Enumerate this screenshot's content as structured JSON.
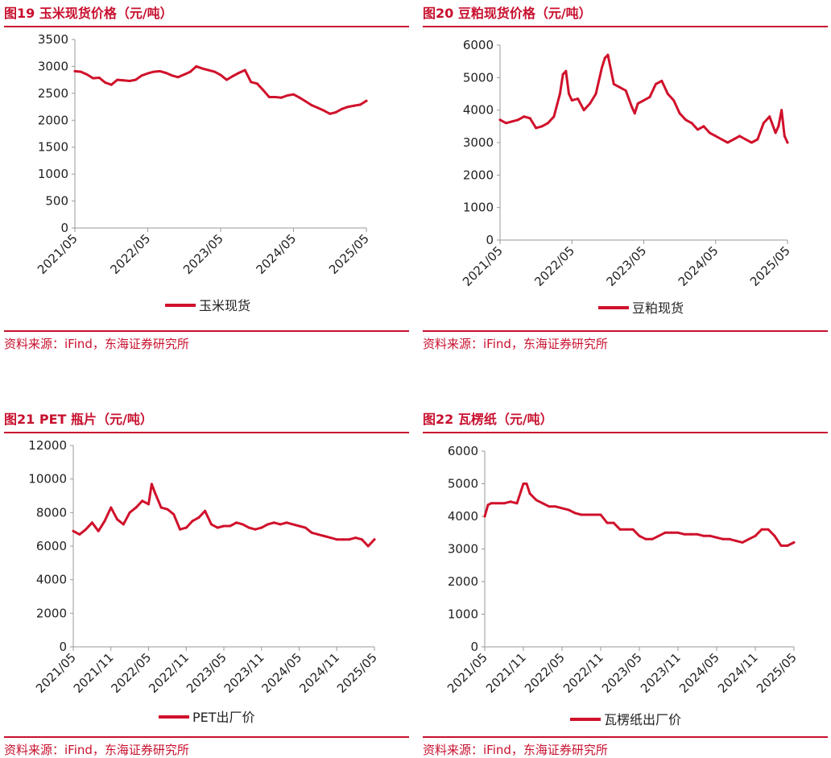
{
  "colors": {
    "accent": "#c8102e",
    "series": "#d0112b",
    "axis": "#9a9a9a",
    "text": "#222222"
  },
  "chart_data": [
    {
      "type": "line",
      "title": "图19  玉米现货价格（元/吨）",
      "ylim": [
        0,
        3500
      ],
      "yticks": [
        0,
        500,
        1000,
        1500,
        2000,
        2500,
        3000,
        3500
      ],
      "x_range": [
        0,
        48
      ],
      "x_ticks": [
        {
          "pos": 0,
          "label": "2021/05"
        },
        {
          "pos": 12,
          "label": "2022/05"
        },
        {
          "pos": 24,
          "label": "2023/05"
        },
        {
          "pos": 36,
          "label": "2024/05"
        },
        {
          "pos": 48,
          "label": "2025/05"
        }
      ],
      "series": [
        {
          "name": "玉米现货",
          "x": [
            0,
            1,
            2,
            3,
            4,
            5,
            6,
            7,
            8,
            9,
            10,
            11,
            12,
            13,
            14,
            15,
            16,
            17,
            18,
            19,
            20,
            21,
            22,
            23,
            24,
            25,
            26,
            27,
            28,
            29,
            30,
            31,
            32,
            33,
            34,
            35,
            36,
            37,
            38,
            39,
            40,
            41,
            42,
            43,
            44,
            45,
            46,
            47,
            48
          ],
          "values": [
            2910,
            2900,
            2850,
            2780,
            2790,
            2700,
            2660,
            2750,
            2740,
            2730,
            2750,
            2830,
            2870,
            2900,
            2910,
            2880,
            2830,
            2800,
            2850,
            2900,
            3000,
            2960,
            2930,
            2900,
            2840,
            2750,
            2820,
            2880,
            2930,
            2710,
            2680,
            2560,
            2430,
            2430,
            2420,
            2460,
            2480,
            2420,
            2350,
            2280,
            2230,
            2180,
            2120,
            2150,
            2210,
            2250,
            2270,
            2290,
            2360
          ]
        }
      ],
      "legend": "玉米现货",
      "source": "资料来源：iFind，东海证券研究所"
    },
    {
      "type": "line",
      "title": "图20  豆粕现货价格（元/吨）",
      "ylim": [
        0,
        6000
      ],
      "yticks": [
        0,
        1000,
        2000,
        3000,
        4000,
        5000,
        6000
      ],
      "x_range": [
        0,
        48
      ],
      "x_ticks": [
        {
          "pos": 0,
          "label": "2021/05"
        },
        {
          "pos": 12,
          "label": "2022/05"
        },
        {
          "pos": 24,
          "label": "2023/05"
        },
        {
          "pos": 36,
          "label": "2024/05"
        },
        {
          "pos": 48,
          "label": "2025/05"
        }
      ],
      "series": [
        {
          "name": "豆粕现货",
          "x": [
            0,
            1,
            2,
            3,
            4,
            5,
            6,
            7,
            8,
            9,
            10,
            10.5,
            11,
            11.5,
            12,
            13,
            14,
            15,
            16,
            17,
            17.5,
            18,
            19,
            20,
            21,
            22,
            22.5,
            23,
            24,
            25,
            26,
            27,
            28,
            29,
            30,
            31,
            32,
            33,
            34,
            35,
            36,
            37,
            38,
            39,
            40,
            41,
            42,
            43,
            44,
            45,
            46,
            46.5,
            47,
            47.5,
            48
          ],
          "values": [
            3700,
            3600,
            3650,
            3700,
            3800,
            3750,
            3450,
            3500,
            3600,
            3800,
            4500,
            5100,
            5200,
            4500,
            4300,
            4350,
            4000,
            4200,
            4500,
            5300,
            5600,
            5700,
            4800,
            4700,
            4600,
            4100,
            3900,
            4200,
            4300,
            4400,
            4800,
            4900,
            4500,
            4300,
            3900,
            3700,
            3600,
            3400,
            3500,
            3300,
            3200,
            3100,
            3000,
            3100,
            3200,
            3100,
            3000,
            3100,
            3600,
            3800,
            3300,
            3500,
            4000,
            3200,
            3000
          ]
        }
      ],
      "legend": "豆粕现货",
      "source": "资料来源：iFind，东海证券研究所"
    },
    {
      "type": "line",
      "title": "图21  PET 瓶片（元/吨）",
      "ylim": [
        0,
        12000
      ],
      "yticks": [
        0,
        2000,
        4000,
        6000,
        8000,
        10000,
        12000
      ],
      "x_range": [
        0,
        48
      ],
      "x_ticks": [
        {
          "pos": 0,
          "label": "2021/05"
        },
        {
          "pos": 6,
          "label": "2021/11"
        },
        {
          "pos": 12,
          "label": "2022/05"
        },
        {
          "pos": 18,
          "label": "2022/11"
        },
        {
          "pos": 24,
          "label": "2023/05"
        },
        {
          "pos": 30,
          "label": "2023/11"
        },
        {
          "pos": 36,
          "label": "2024/05"
        },
        {
          "pos": 42,
          "label": "2024/11"
        },
        {
          "pos": 48,
          "label": "2025/05"
        }
      ],
      "series": [
        {
          "name": "PET出厂价",
          "x": [
            0,
            1,
            2,
            3,
            4,
            5,
            6,
            7,
            8,
            9,
            10,
            11,
            12,
            12.5,
            13,
            14,
            15,
            16,
            17,
            18,
            19,
            20,
            21,
            22,
            23,
            24,
            25,
            26,
            27,
            28,
            29,
            30,
            31,
            32,
            33,
            34,
            35,
            36,
            37,
            38,
            39,
            40,
            41,
            42,
            43,
            44,
            45,
            46,
            47,
            48
          ],
          "values": [
            6900,
            6700,
            7000,
            7400,
            6900,
            7500,
            8300,
            7600,
            7300,
            8000,
            8300,
            8700,
            8500,
            9700,
            9200,
            8300,
            8200,
            7900,
            7000,
            7100,
            7500,
            7700,
            8100,
            7300,
            7100,
            7200,
            7200,
            7400,
            7300,
            7100,
            7000,
            7100,
            7300,
            7400,
            7300,
            7400,
            7300,
            7200,
            7100,
            6800,
            6700,
            6600,
            6500,
            6400,
            6400,
            6400,
            6500,
            6400,
            6000,
            6400
          ]
        }
      ],
      "legend": "PET出厂价",
      "source": "资料来源：iFind，东海证券研究所"
    },
    {
      "type": "line",
      "title": "图22  瓦楞纸（元/吨）",
      "ylim": [
        0,
        6000
      ],
      "yticks": [
        0,
        1000,
        2000,
        3000,
        4000,
        5000,
        6000
      ],
      "x_range": [
        0,
        48
      ],
      "x_ticks": [
        {
          "pos": 0,
          "label": "2021/05"
        },
        {
          "pos": 6,
          "label": "2021/11"
        },
        {
          "pos": 12,
          "label": "2022/05"
        },
        {
          "pos": 18,
          "label": "2022/11"
        },
        {
          "pos": 24,
          "label": "2023/05"
        },
        {
          "pos": 30,
          "label": "2023/11"
        },
        {
          "pos": 36,
          "label": "2024/05"
        },
        {
          "pos": 42,
          "label": "2024/11"
        },
        {
          "pos": 48,
          "label": "2025/05"
        }
      ],
      "series": [
        {
          "name": "瓦楞纸出厂价",
          "x": [
            0,
            0.5,
            1,
            2,
            3,
            4,
            5,
            6,
            6.5,
            7,
            8,
            9,
            10,
            11,
            12,
            13,
            14,
            15,
            16,
            17,
            18,
            19,
            20,
            21,
            22,
            23,
            24,
            25,
            26,
            27,
            28,
            29,
            30,
            31,
            32,
            33,
            34,
            35,
            36,
            37,
            38,
            39,
            40,
            41,
            42,
            43,
            44,
            45,
            46,
            47,
            48
          ],
          "values": [
            4000,
            4350,
            4400,
            4400,
            4400,
            4450,
            4400,
            5000,
            5000,
            4700,
            4500,
            4400,
            4300,
            4300,
            4250,
            4200,
            4100,
            4050,
            4050,
            4050,
            4050,
            3800,
            3800,
            3600,
            3600,
            3600,
            3400,
            3300,
            3300,
            3400,
            3500,
            3500,
            3500,
            3450,
            3450,
            3450,
            3400,
            3400,
            3350,
            3300,
            3300,
            3250,
            3200,
            3300,
            3400,
            3600,
            3600,
            3400,
            3100,
            3100,
            3200
          ]
        }
      ],
      "legend": "瓦楞纸出厂价",
      "source": "资料来源：iFind，东海证券研究所"
    }
  ]
}
